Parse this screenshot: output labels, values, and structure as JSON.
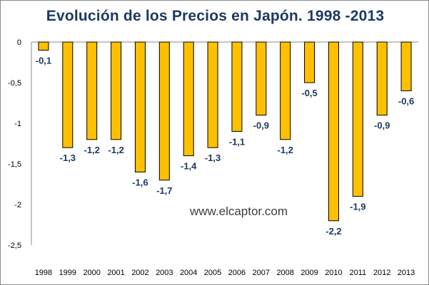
{
  "chart_data": {
    "type": "bar",
    "title": "Evolución de los Precios en Japón. 1998 -2013",
    "xlabel": "",
    "ylabel": "",
    "ylim": [
      -2.5,
      0
    ],
    "yticks": [
      0,
      -0.5,
      -1,
      -1.5,
      -2,
      -2.5
    ],
    "ytick_labels": [
      "0",
      "-0,5",
      "-1",
      "-1,5",
      "-2",
      "-2,5"
    ],
    "categories": [
      "1998",
      "1999",
      "2000",
      "2001",
      "2002",
      "2003",
      "2004",
      "2005",
      "2006",
      "2007",
      "2008",
      "2009",
      "2010",
      "2011",
      "2012",
      "2013"
    ],
    "values": [
      -0.1,
      -1.3,
      -1.2,
      -1.2,
      -1.6,
      -1.7,
      -1.4,
      -1.3,
      -1.1,
      -0.9,
      -1.2,
      -0.5,
      -2.2,
      -1.9,
      -0.9,
      -0.6
    ],
    "data_labels": [
      "-0,1",
      "-1,3",
      "-1,2",
      "-1,2",
      "-1,6",
      "-1,7",
      "-1,4",
      "-1,3",
      "-1,1",
      "-0,9",
      "-1,2",
      "-0,5",
      "-2,2",
      "-1,9",
      "-0,9",
      "-0,6"
    ],
    "bar_color": "#ffc000",
    "label_color": "#1f3864",
    "grid": false,
    "legend": "none",
    "annotation": "www.elcaptor.com"
  }
}
